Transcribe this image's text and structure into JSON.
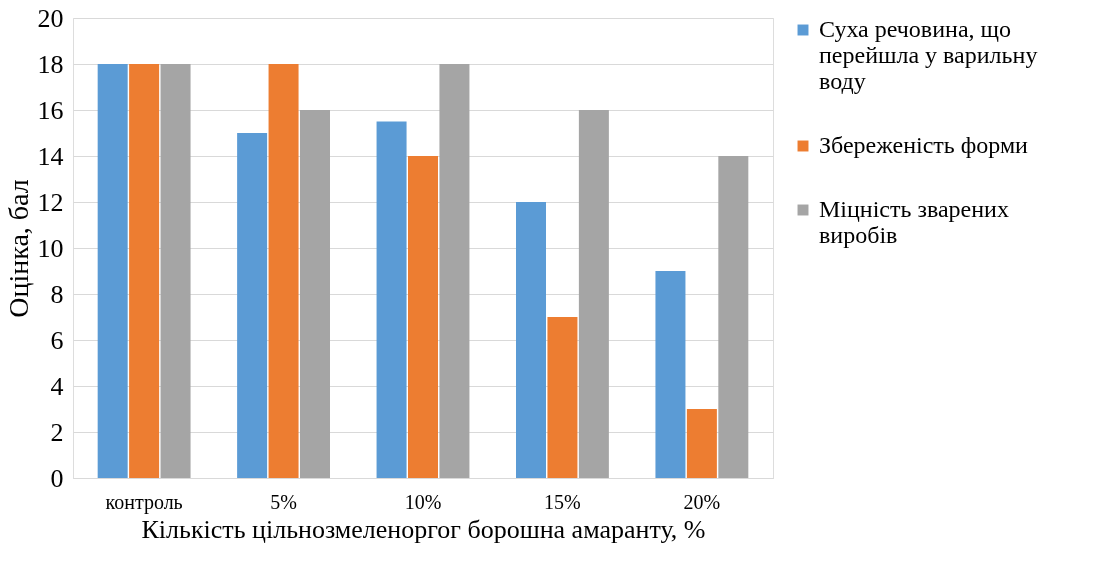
{
  "chart_data": {
    "type": "bar",
    "xlabel": "Кількість цільнозмеленоргог борошна амаранту, %",
    "ylabel": "Оцінка, бал",
    "categories": [
      "контроль",
      "5%",
      "10%",
      "15%",
      "20%"
    ],
    "series": [
      {
        "name": "Суха речовина, що перейшла у варильну воду",
        "color": "#5b9bd5",
        "values": [
          18,
          15,
          15.5,
          12,
          9
        ]
      },
      {
        "name": "Збереженість форми",
        "color": "#ed7d31",
        "values": [
          18,
          18,
          14,
          7,
          3
        ]
      },
      {
        "name": "Міцність зварених виробів",
        "color": "#a5a5a5",
        "values": [
          18,
          16,
          18,
          16,
          14
        ]
      }
    ],
    "ylim": [
      0,
      20
    ],
    "yticks": [
      0,
      2,
      4,
      6,
      8,
      10,
      12,
      14,
      16,
      18,
      20
    ],
    "grid": "y",
    "legend": "right"
  }
}
